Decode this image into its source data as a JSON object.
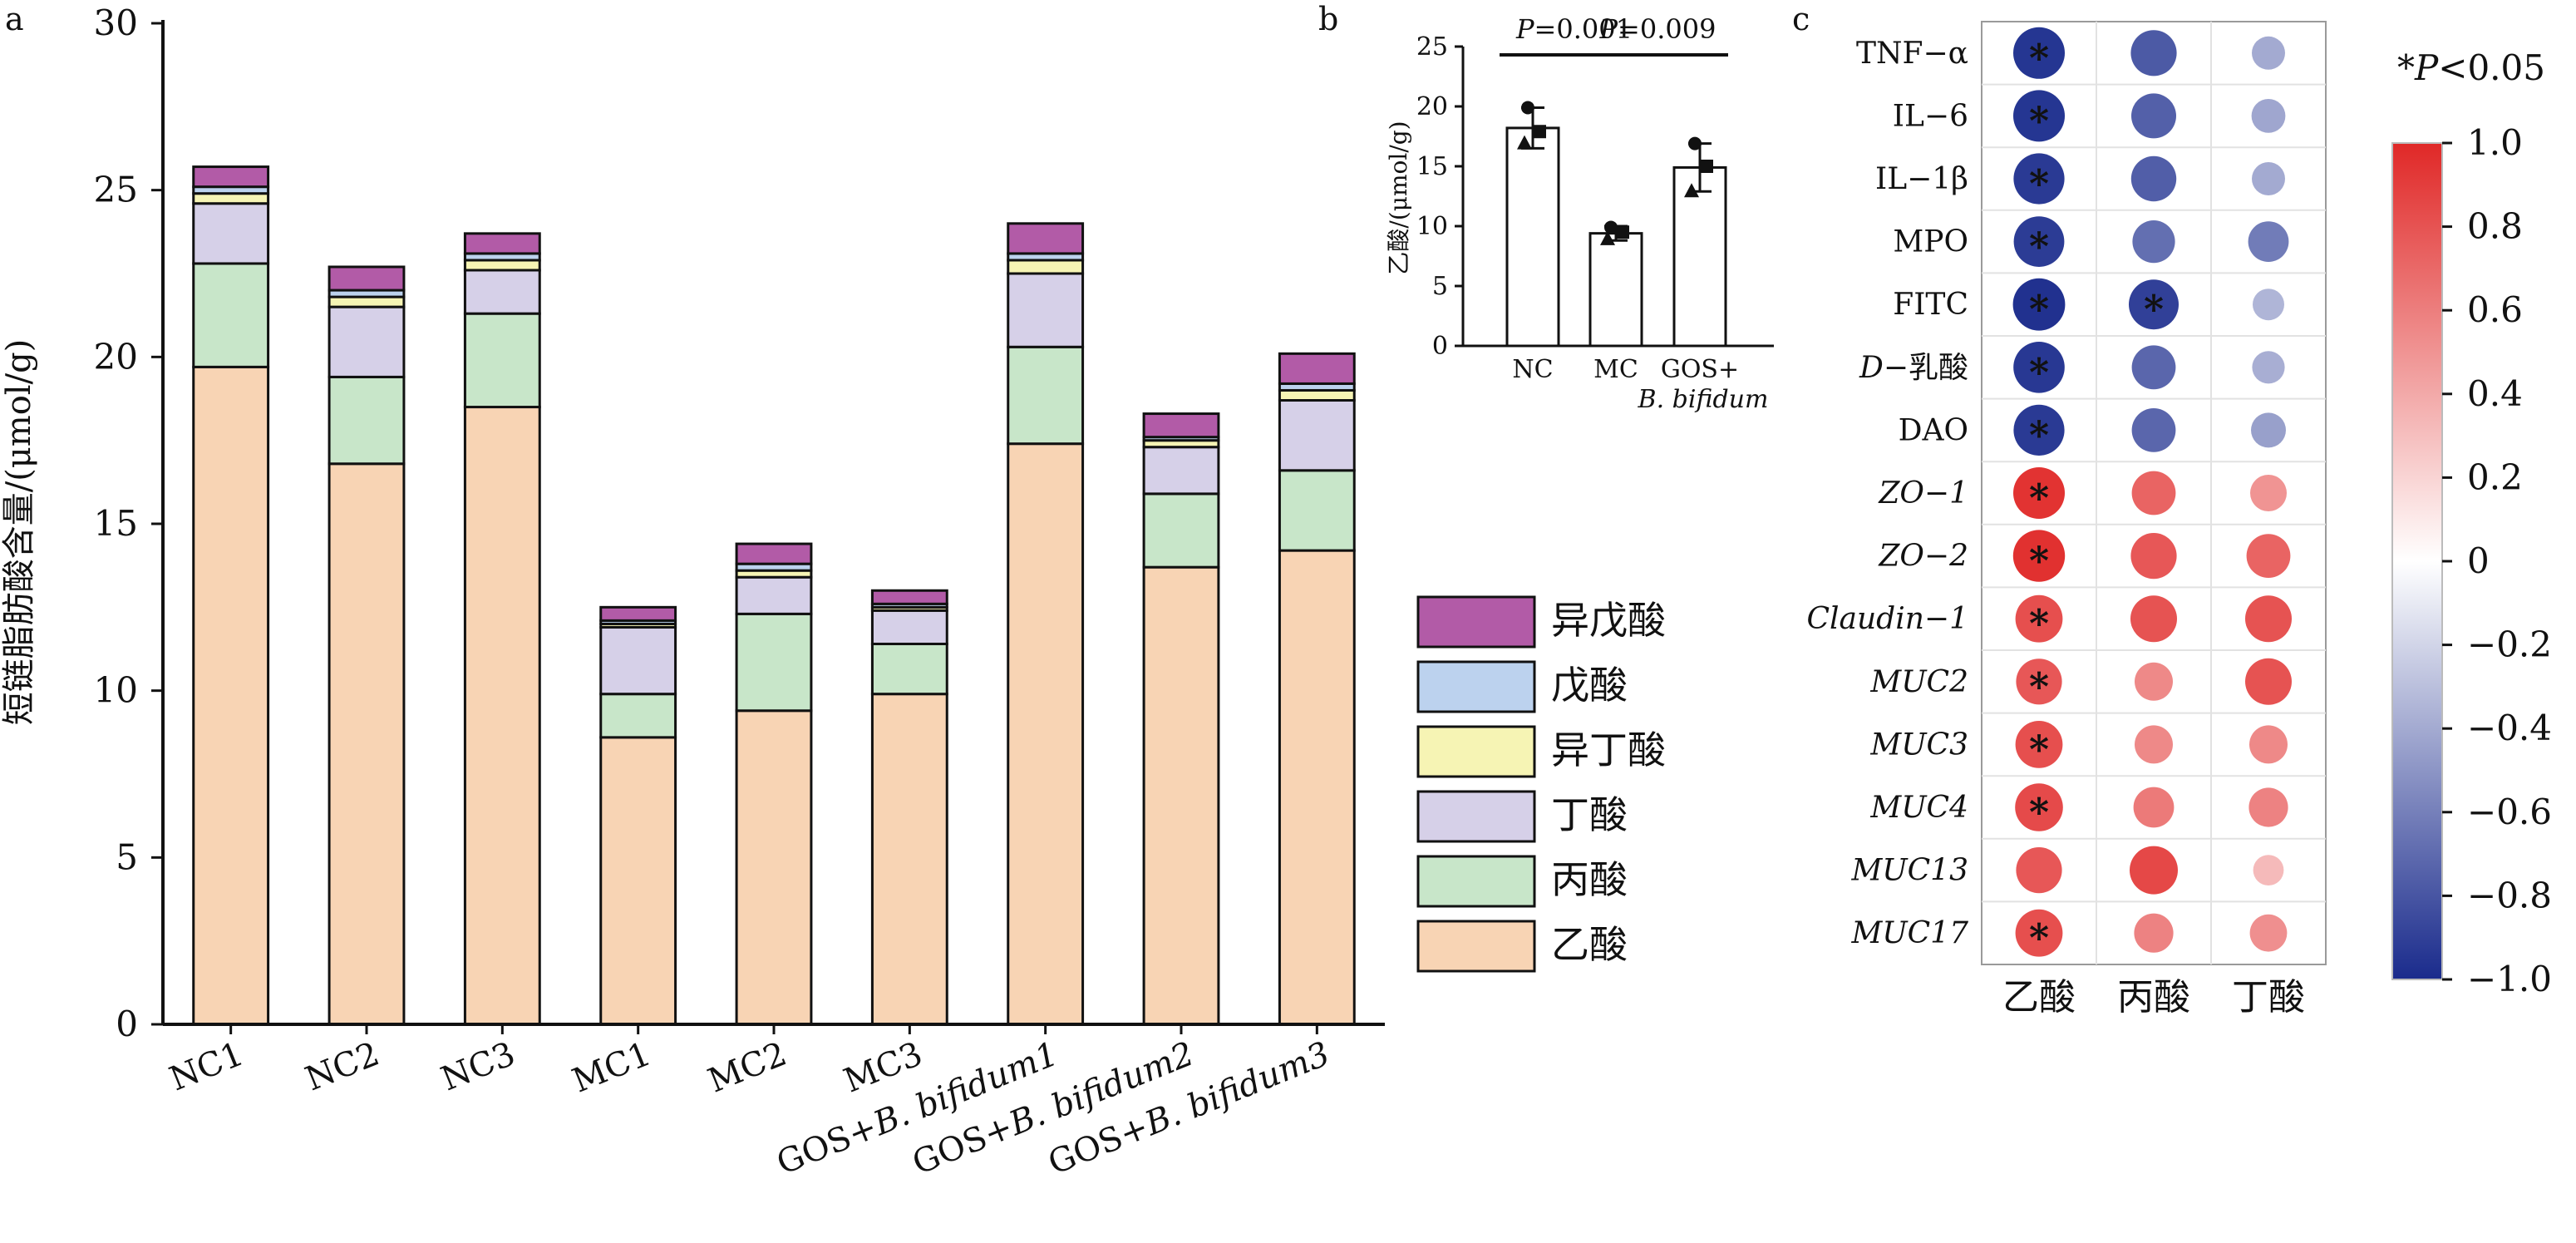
{
  "panel_letters": {
    "a": "a",
    "b": "b",
    "c": "c"
  },
  "colors": {
    "乙酸": "#F8D4B4",
    "丙酸": "#C8E6C9",
    "丁酸": "#D6D0E8",
    "异丁酸": "#F6F4B4",
    "戊酸": "#BCD2EE",
    "异戊酸": "#B25BA7",
    "bar_b": "#FFFFFF",
    "pos": "#E02827",
    "mid": "#FFFFFF",
    "neg": "#1A2B8C"
  },
  "chart_data": [
    {
      "type": "bar",
      "stacked": true,
      "panel": "a",
      "ylabel": "短链脂肪酸含量/(μmol/g)",
      "ylim": [
        0,
        30
      ],
      "yticks": [
        0,
        5,
        10,
        15,
        20,
        25,
        30
      ],
      "categories": [
        "NC1",
        "NC2",
        "NC3",
        "MC1",
        "MC2",
        "MC3",
        "GOS+B. bifidum1",
        "GOS+B. bifidum2",
        "GOS+B. bifidum3"
      ],
      "category_parts": [
        [
          "NC1",
          ""
        ],
        [
          "NC2",
          ""
        ],
        [
          "NC3",
          ""
        ],
        [
          "MC1",
          ""
        ],
        [
          "MC2",
          ""
        ],
        [
          "MC3",
          ""
        ],
        [
          "GOS+",
          "B. bifidum1"
        ],
        [
          "GOS+",
          "B. bifidum2"
        ],
        [
          "GOS+",
          "B. bifidum3"
        ]
      ],
      "series": [
        {
          "name": "乙酸",
          "values": [
            19.7,
            16.8,
            18.5,
            8.6,
            9.4,
            9.9,
            17.4,
            13.7,
            14.2
          ]
        },
        {
          "name": "丙酸",
          "values": [
            3.1,
            2.6,
            2.8,
            1.3,
            2.9,
            1.5,
            2.9,
            2.2,
            2.4
          ]
        },
        {
          "name": "丁酸",
          "values": [
            1.8,
            2.1,
            1.3,
            2.0,
            1.1,
            1.0,
            2.2,
            1.4,
            2.1
          ]
        },
        {
          "name": "异丁酸",
          "values": [
            0.3,
            0.3,
            0.3,
            0.1,
            0.2,
            0.1,
            0.4,
            0.2,
            0.3
          ]
        },
        {
          "name": "戊酸",
          "values": [
            0.2,
            0.2,
            0.2,
            0.1,
            0.2,
            0.1,
            0.2,
            0.1,
            0.2
          ]
        },
        {
          "name": "异戊酸",
          "values": [
            0.6,
            0.7,
            0.6,
            0.4,
            0.6,
            0.4,
            0.9,
            0.7,
            0.9
          ]
        }
      ],
      "legend_order": [
        "异戊酸",
        "戊酸",
        "异丁酸",
        "丁酸",
        "丙酸",
        "乙酸"
      ],
      "legend_position": "right"
    },
    {
      "type": "bar",
      "panel": "b",
      "ylabel": "乙酸/(μmol/g)",
      "ylim": [
        0,
        25
      ],
      "yticks": [
        0,
        5,
        10,
        15,
        20,
        25
      ],
      "categories": [
        "NC",
        "MC",
        "GOS+B. bifidum"
      ],
      "category_parts": [
        [
          "NC",
          ""
        ],
        [
          "MC",
          ""
        ],
        [
          "GOS+",
          "B. bifidum"
        ]
      ],
      "values": [
        18.2,
        9.4,
        14.9
      ],
      "error": [
        1.7,
        0.6,
        2.0
      ],
      "points": [
        [
          19.9,
          17.9,
          16.9
        ],
        [
          9.9,
          9.5,
          8.9
        ],
        [
          16.9,
          15.0,
          12.9
        ]
      ],
      "comparisons": [
        {
          "from": 0,
          "to": 1,
          "label": "P=0.001",
          "p": "P",
          "rest": "=0.001"
        },
        {
          "from": 1,
          "to": 2,
          "label": "P=0.009",
          "p": "P",
          "rest": "=0.009"
        }
      ]
    },
    {
      "type": "heatmap",
      "panel": "c",
      "rows": [
        "TNF−α",
        "IL−6",
        "IL−1β",
        "MPO",
        "FITC",
        "D−乳酸",
        "DAO",
        "ZO−1",
        "ZO−2",
        "Claudin−1",
        "MUC2",
        "MUC3",
        "MUC4",
        "MUC13",
        "MUC17"
      ],
      "row_parts": [
        [
          "",
          "TNF−α"
        ],
        [
          "",
          "IL−6"
        ],
        [
          "",
          "IL−1β"
        ],
        [
          "",
          "MPO"
        ],
        [
          "",
          "FITC"
        ],
        [
          "D",
          "−乳酸"
        ],
        [
          "",
          "DAO"
        ],
        [
          "ZO−1",
          ""
        ],
        [
          "ZO−2",
          ""
        ],
        [
          "Claudin−1",
          ""
        ],
        [
          "MUC2",
          ""
        ],
        [
          "MUC3",
          ""
        ],
        [
          "MUC4",
          ""
        ],
        [
          "MUC13",
          ""
        ],
        [
          "MUC17",
          ""
        ]
      ],
      "columns": [
        "乙酸",
        "丙酸",
        "丁酸"
      ],
      "values": [
        [
          -0.95,
          -0.78,
          -0.4
        ],
        [
          -0.95,
          -0.75,
          -0.42
        ],
        [
          -0.93,
          -0.76,
          -0.4
        ],
        [
          -0.92,
          -0.68,
          -0.62
        ],
        [
          -0.97,
          -0.9,
          -0.35
        ],
        [
          -0.94,
          -0.72,
          -0.38
        ],
        [
          -0.93,
          -0.72,
          -0.45
        ],
        [
          0.95,
          0.72,
          0.5
        ],
        [
          0.96,
          0.78,
          0.72
        ],
        [
          0.82,
          0.8,
          0.8
        ],
        [
          0.78,
          0.55,
          0.8
        ],
        [
          0.82,
          0.55,
          0.55
        ],
        [
          0.84,
          0.62,
          0.58
        ],
        [
          0.78,
          0.85,
          0.32
        ],
        [
          0.82,
          0.58,
          0.52
        ]
      ],
      "significant": [
        [
          true,
          false,
          false
        ],
        [
          true,
          false,
          false
        ],
        [
          true,
          false,
          false
        ],
        [
          true,
          false,
          false
        ],
        [
          true,
          true,
          false
        ],
        [
          true,
          false,
          false
        ],
        [
          true,
          false,
          false
        ],
        [
          true,
          false,
          false
        ],
        [
          true,
          false,
          false
        ],
        [
          true,
          false,
          false
        ],
        [
          true,
          false,
          false
        ],
        [
          true,
          false,
          false
        ],
        [
          true,
          false,
          false
        ],
        [
          false,
          false,
          false
        ],
        [
          true,
          false,
          false
        ]
      ],
      "colorbar": {
        "ticks": [
          "1.0",
          "0.8",
          "0.6",
          "0.4",
          "0.2",
          "0",
          "−0.2",
          "−0.4",
          "−0.6",
          "−0.8",
          "−1.0"
        ],
        "range": [
          -1,
          1
        ]
      },
      "significance_note": {
        "star": "*",
        "p": "P",
        "rest": "<0.05"
      }
    }
  ]
}
